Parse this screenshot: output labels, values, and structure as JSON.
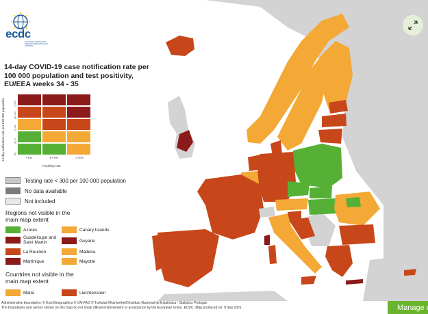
{
  "logo": {
    "text": "ecdc",
    "sub": "EUROPEAN CENTRE FOR DISEASE PREVENTION AND CONTROL"
  },
  "title": "14-day COVID-19 case notification rate per 100 000 population and test positivity, EU/EEA weeks 34 - 35",
  "matrix": {
    "y_label": "14-day notification rate per 100 000 population",
    "y_ticks": [
      ">=500",
      "200-499",
      "75-199",
      "50-74",
      "<50"
    ],
    "x_ticks": [
      "<1%",
      "1-<4%",
      ">=4%"
    ],
    "x_label": "Positivity rate",
    "colors": {
      "green": "#56b036",
      "orange": "#f4a836",
      "red_orange": "#c8471a",
      "dark_red": "#8b1a1a",
      "grey": "#c8c8c8",
      "dark_grey": "#7a7a7a",
      "light_grey": "#e8e8e8"
    }
  },
  "legend": {
    "testing_rate": "Testing rate < 300 per 100 000 population",
    "no_data": "No data available",
    "not_included": "Not included"
  },
  "regions_header": "Regions not visible in the main map extent",
  "regions": [
    {
      "name": "Azores",
      "color": "green"
    },
    {
      "name": "Canary Islands",
      "color": "orange"
    },
    {
      "name": "Guadeloupe and Saint Martin",
      "color": "dark_red"
    },
    {
      "name": "Guyane",
      "color": "dark_red"
    },
    {
      "name": "La Reunion",
      "color": "red_orange"
    },
    {
      "name": "Madeira",
      "color": "orange"
    },
    {
      "name": "Martinique",
      "color": "dark_red"
    },
    {
      "name": "Mayotte",
      "color": "orange"
    }
  ],
  "countries_header": "Countries not visible in the main map extent",
  "countries": [
    {
      "name": "Malta",
      "color": "orange"
    },
    {
      "name": "Liechtenstein",
      "color": "red_orange"
    }
  ],
  "footer": {
    "line1": "Administrative boundaries: © EuroGeographics © UN-FAO © Turkstat.©Kartverket©Instituto Nacional de Estatística - Statistics Portugal.",
    "line2": "The boundaries and names shown on this map do not imply official endorsement or acceptance by the European Union. ECDC. Map produced on: 9 Sep 2021"
  },
  "manage_button": "Manage c"
}
